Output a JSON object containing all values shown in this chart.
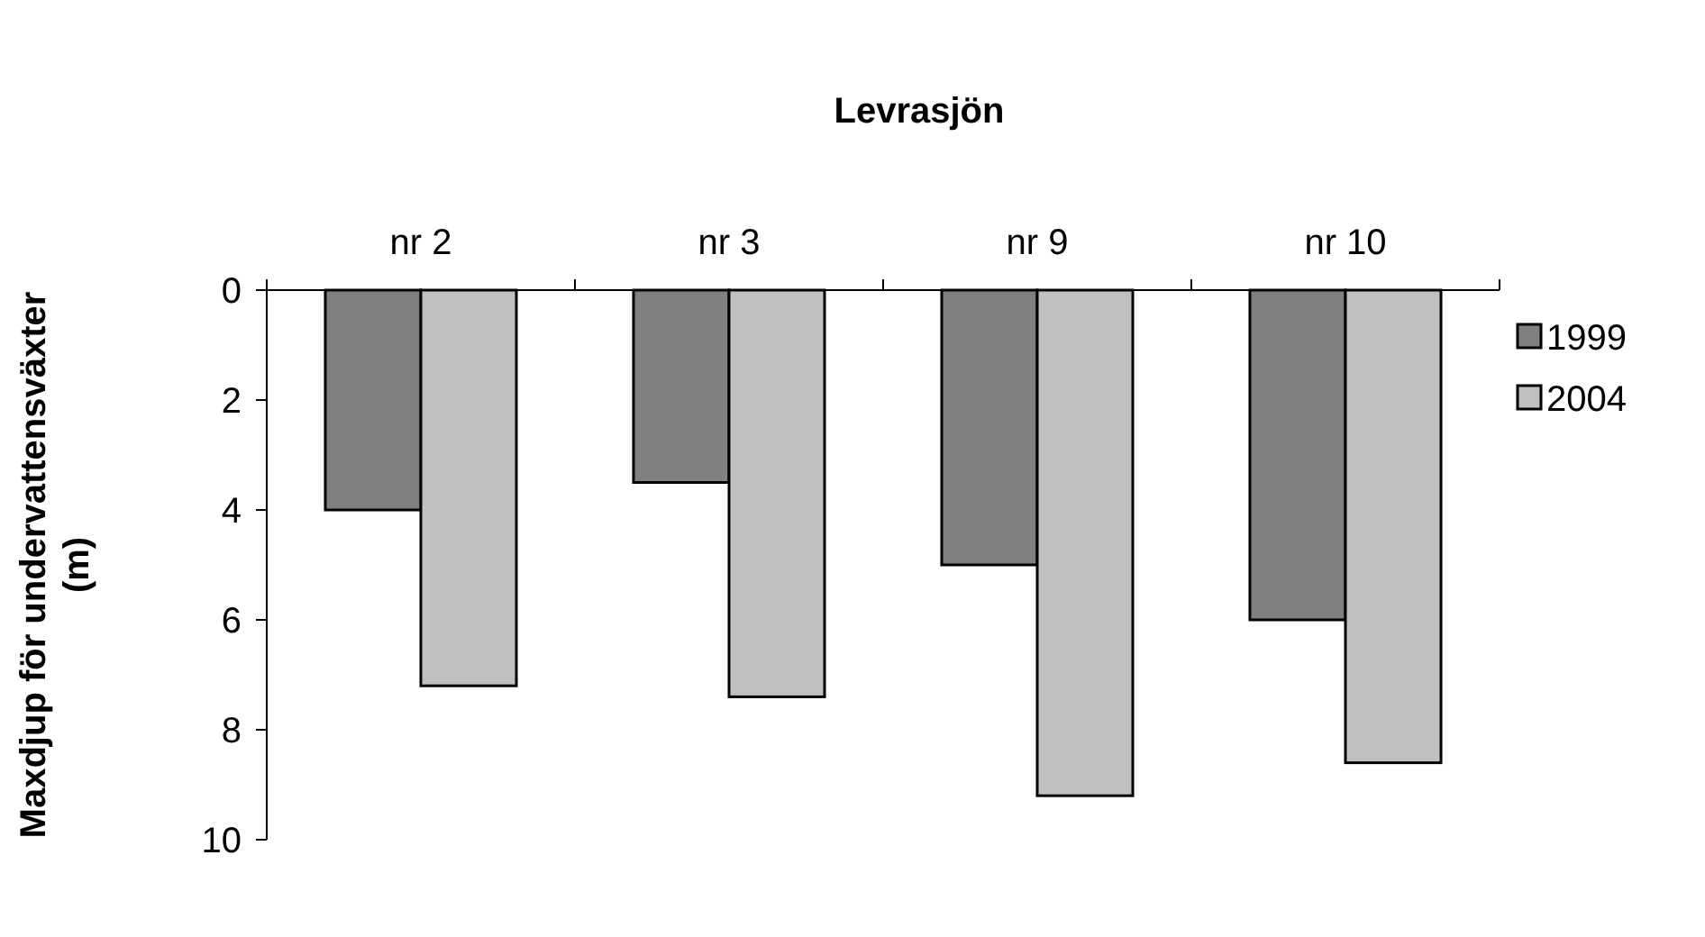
{
  "chart_data": {
    "type": "bar",
    "title": "Levrasjön",
    "ylabel": "Maxdjup för undervattensväxter (m)",
    "categories": [
      "nr 2",
      "nr 3",
      "nr 9",
      "nr 10"
    ],
    "series": [
      {
        "name": "1999",
        "color": "#808080",
        "values": [
          4,
          3.5,
          5,
          6
        ]
      },
      {
        "name": "2004",
        "color": "#c0c0c0",
        "values": [
          7.2,
          7.4,
          9.2,
          8.6
        ]
      }
    ],
    "ylim": [
      10,
      0
    ],
    "yticks": [
      0,
      2,
      4,
      6,
      8,
      10
    ],
    "grid": false,
    "legend": "right"
  }
}
